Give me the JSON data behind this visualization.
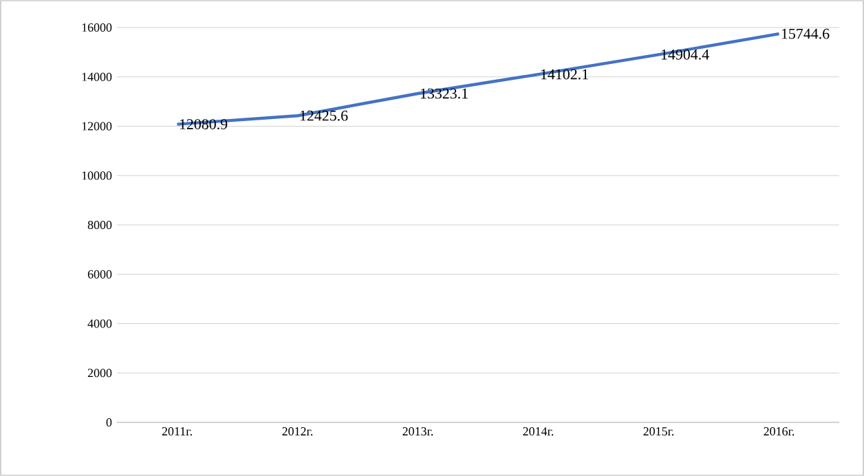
{
  "chart_data": {
    "type": "line",
    "categories": [
      "2011г.",
      "2012г.",
      "2013г.",
      "2014г.",
      "2015г.",
      "2016г."
    ],
    "values": [
      12080.9,
      12425.6,
      13323.1,
      14102.1,
      14904.4,
      15744.6
    ],
    "color": "#4472c4",
    "ylim": [
      0,
      16000
    ],
    "yticks": [
      0,
      2000,
      4000,
      6000,
      8000,
      10000,
      12000,
      14000,
      16000
    ],
    "grid": "y",
    "data_labels": true,
    "marker": "none",
    "line_style": "solid"
  }
}
